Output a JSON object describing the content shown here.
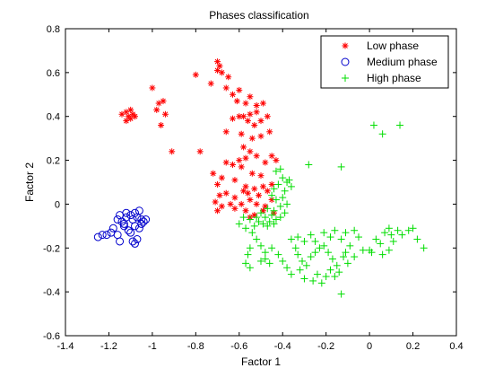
{
  "chart_data": {
    "type": "scatter",
    "title": "Phases classification",
    "xlabel": "Factor 1",
    "ylabel": "Factor 2",
    "xlim": [
      -1.4,
      0.4
    ],
    "ylim": [
      -0.6,
      0.8
    ],
    "xticks": [
      -1.4,
      -1.2,
      -1,
      -0.8,
      -0.6,
      -0.4,
      -0.2,
      0,
      0.2,
      0.4
    ],
    "xtick_labels": [
      "-1.4",
      "-1.2",
      "-1",
      "-0.8",
      "-0.6",
      "-0.4",
      "-0.2",
      "0",
      "0.2",
      "0.4"
    ],
    "yticks": [
      -0.6,
      -0.4,
      -0.2,
      0,
      0.2,
      0.4,
      0.6,
      0.8
    ],
    "ytick_labels": [
      "-0.6",
      "-0.4",
      "-0.2",
      "0",
      "0.2",
      "0.4",
      "0.6",
      "0.8"
    ],
    "grid": false,
    "legend_position": "top-right",
    "series": [
      {
        "name": "Low phase",
        "marker": "asterisk",
        "color": "#ff0000",
        "points": [
          [
            -1.12,
            0.42
          ],
          [
            -1.1,
            0.43
          ],
          [
            -1.11,
            0.4
          ],
          [
            -1.14,
            0.41
          ],
          [
            -1.09,
            0.41
          ],
          [
            -1.1,
            0.39
          ],
          [
            -1.12,
            0.38
          ],
          [
            -1.08,
            0.4
          ],
          [
            -1.0,
            0.53
          ],
          [
            -0.97,
            0.46
          ],
          [
            -0.95,
            0.47
          ],
          [
            -0.98,
            0.43
          ],
          [
            -0.94,
            0.41
          ],
          [
            -0.96,
            0.36
          ],
          [
            -0.91,
            0.24
          ],
          [
            -0.8,
            0.59
          ],
          [
            -0.73,
            0.55
          ],
          [
            -0.7,
            0.65
          ],
          [
            -0.69,
            0.63
          ],
          [
            -0.7,
            0.61
          ],
          [
            -0.68,
            0.6
          ],
          [
            -0.65,
            0.58
          ],
          [
            -0.66,
            0.53
          ],
          [
            -0.63,
            0.5
          ],
          [
            -0.6,
            0.52
          ],
          [
            -0.55,
            0.49
          ],
          [
            -0.61,
            0.47
          ],
          [
            -0.57,
            0.46
          ],
          [
            -0.52,
            0.45
          ],
          [
            -0.49,
            0.46
          ],
          [
            -0.6,
            0.4
          ],
          [
            -0.63,
            0.39
          ],
          [
            -0.58,
            0.4
          ],
          [
            -0.55,
            0.41
          ],
          [
            -0.52,
            0.42
          ],
          [
            -0.56,
            0.38
          ],
          [
            -0.53,
            0.36
          ],
          [
            -0.5,
            0.38
          ],
          [
            -0.47,
            0.4
          ],
          [
            -0.66,
            0.33
          ],
          [
            -0.59,
            0.32
          ],
          [
            -0.54,
            0.3
          ],
          [
            -0.5,
            0.31
          ],
          [
            -0.46,
            0.33
          ],
          [
            -0.78,
            0.24
          ],
          [
            -0.58,
            0.26
          ],
          [
            -0.55,
            0.24
          ],
          [
            -0.6,
            0.2
          ],
          [
            -0.57,
            0.21
          ],
          [
            -0.52,
            0.22
          ],
          [
            -0.48,
            0.19
          ],
          [
            -0.45,
            0.22
          ],
          [
            -0.43,
            0.2
          ],
          [
            -0.66,
            0.19
          ],
          [
            -0.63,
            0.18
          ],
          [
            -0.59,
            0.17
          ],
          [
            -0.54,
            0.14
          ],
          [
            -0.5,
            0.13
          ],
          [
            -0.72,
            0.14
          ],
          [
            -0.68,
            0.12
          ],
          [
            -0.7,
            0.09
          ],
          [
            -0.62,
            0.11
          ],
          [
            -0.57,
            0.08
          ],
          [
            -0.53,
            0.07
          ],
          [
            -0.49,
            0.08
          ],
          [
            -0.45,
            0.09
          ],
          [
            -0.69,
            0.04
          ],
          [
            -0.66,
            0.05
          ],
          [
            -0.62,
            0.03
          ],
          [
            -0.58,
            0.06
          ],
          [
            -0.55,
            0.02
          ],
          [
            -0.51,
            0.04
          ],
          [
            -0.47,
            0.06
          ],
          [
            -0.71,
            0.01
          ],
          [
            -0.68,
            -0.01
          ],
          [
            -0.64,
            0.0
          ],
          [
            -0.59,
            0.0
          ],
          [
            -0.56,
            0.05
          ],
          [
            -0.52,
            0.0
          ],
          [
            -0.48,
            -0.01
          ],
          [
            -0.7,
            -0.03
          ],
          [
            -0.62,
            -0.02
          ],
          [
            -0.57,
            -0.03
          ],
          [
            -0.53,
            -0.05
          ],
          [
            -0.49,
            -0.03
          ],
          [
            -0.45,
            0.02
          ],
          [
            -0.44,
            -0.04
          ],
          [
            -0.55,
            -0.06
          ]
        ]
      },
      {
        "name": "Medium phase",
        "marker": "circle",
        "color": "#0000cc",
        "points": [
          [
            -1.25,
            -0.15
          ],
          [
            -1.23,
            -0.14
          ],
          [
            -1.21,
            -0.14
          ],
          [
            -1.19,
            -0.13
          ],
          [
            -1.18,
            -0.11
          ],
          [
            -1.16,
            -0.14
          ],
          [
            -1.15,
            -0.17
          ],
          [
            -1.16,
            -0.07
          ],
          [
            -1.15,
            -0.05
          ],
          [
            -1.14,
            -0.08
          ],
          [
            -1.13,
            -0.09
          ],
          [
            -1.12,
            -0.06
          ],
          [
            -1.12,
            -0.04
          ],
          [
            -1.1,
            -0.05
          ],
          [
            -1.09,
            -0.07
          ],
          [
            -1.08,
            -0.04
          ],
          [
            -1.07,
            -0.06
          ],
          [
            -1.06,
            -0.03
          ],
          [
            -1.05,
            -0.07
          ],
          [
            -1.04,
            -0.08
          ],
          [
            -1.03,
            -0.07
          ],
          [
            -1.11,
            -0.12
          ],
          [
            -1.1,
            -0.13
          ],
          [
            -1.09,
            -0.17
          ],
          [
            -1.08,
            -0.18
          ],
          [
            -1.07,
            -0.16
          ],
          [
            -1.06,
            -0.11
          ],
          [
            -1.05,
            -0.09
          ],
          [
            -1.13,
            -0.1
          ],
          [
            -1.08,
            -0.1
          ]
        ]
      },
      {
        "name": "High phase",
        "marker": "plus",
        "color": "#00dd00",
        "points": [
          [
            0.02,
            0.36
          ],
          [
            0.06,
            0.32
          ],
          [
            0.14,
            0.36
          ],
          [
            -0.13,
            0.17
          ],
          [
            -0.28,
            0.18
          ],
          [
            -0.41,
            0.16
          ],
          [
            -0.43,
            0.15
          ],
          [
            -0.4,
            0.12
          ],
          [
            -0.38,
            0.1
          ],
          [
            -0.42,
            0.09
          ],
          [
            -0.44,
            0.07
          ],
          [
            -0.39,
            0.06
          ],
          [
            -0.36,
            0.08
          ],
          [
            -0.37,
            0.11
          ],
          [
            -0.45,
            0.04
          ],
          [
            -0.43,
            0.02
          ],
          [
            -0.4,
            0.03
          ],
          [
            -0.38,
            0.0
          ],
          [
            -0.41,
            -0.01
          ],
          [
            -0.44,
            -0.03
          ],
          [
            -0.47,
            -0.02
          ],
          [
            -0.5,
            -0.04
          ],
          [
            -0.52,
            -0.06
          ],
          [
            -0.48,
            -0.06
          ],
          [
            -0.45,
            -0.05
          ],
          [
            -0.43,
            -0.07
          ],
          [
            -0.46,
            -0.08
          ],
          [
            -0.49,
            -0.09
          ],
          [
            -0.51,
            -0.08
          ],
          [
            -0.47,
            -0.1
          ],
          [
            -0.44,
            -0.09
          ],
          [
            -0.41,
            -0.06
          ],
          [
            -0.39,
            -0.04
          ],
          [
            -0.53,
            -0.1
          ],
          [
            -0.55,
            -0.07
          ],
          [
            -0.58,
            -0.06
          ],
          [
            -0.6,
            -0.09
          ],
          [
            -0.57,
            -0.11
          ],
          [
            -0.54,
            -0.13
          ],
          [
            -0.52,
            -0.16
          ],
          [
            -0.5,
            -0.19
          ],
          [
            -0.48,
            -0.22
          ],
          [
            -0.45,
            -0.2
          ],
          [
            -0.42,
            -0.23
          ],
          [
            -0.4,
            -0.26
          ],
          [
            -0.38,
            -0.29
          ],
          [
            -0.36,
            -0.32
          ],
          [
            -0.34,
            -0.2
          ],
          [
            -0.33,
            -0.23
          ],
          [
            -0.31,
            -0.26
          ],
          [
            -0.29,
            -0.28
          ],
          [
            -0.27,
            -0.24
          ],
          [
            -0.25,
            -0.22
          ],
          [
            -0.23,
            -0.2
          ],
          [
            -0.21,
            -0.19
          ],
          [
            -0.19,
            -0.22
          ],
          [
            -0.17,
            -0.25
          ],
          [
            -0.15,
            -0.28
          ],
          [
            -0.14,
            -0.31
          ],
          [
            -0.12,
            -0.24
          ],
          [
            -0.1,
            -0.27
          ],
          [
            -0.18,
            -0.3
          ],
          [
            -0.2,
            -0.33
          ],
          [
            -0.22,
            -0.36
          ],
          [
            -0.24,
            -0.32
          ],
          [
            -0.26,
            -0.35
          ],
          [
            -0.16,
            -0.33
          ],
          [
            -0.13,
            -0.41
          ],
          [
            -0.3,
            -0.34
          ],
          [
            -0.32,
            -0.3
          ],
          [
            -0.46,
            -0.27
          ],
          [
            -0.48,
            -0.25
          ],
          [
            -0.5,
            -0.26
          ],
          [
            -0.55,
            -0.29
          ],
          [
            -0.57,
            -0.27
          ],
          [
            -0.55,
            -0.2
          ],
          [
            -0.56,
            -0.23
          ],
          [
            -0.36,
            -0.16
          ],
          [
            -0.33,
            -0.15
          ],
          [
            -0.3,
            -0.17
          ],
          [
            -0.27,
            -0.14
          ],
          [
            -0.25,
            -0.17
          ],
          [
            -0.21,
            -0.13
          ],
          [
            -0.18,
            -0.15
          ],
          [
            -0.16,
            -0.12
          ],
          [
            -0.13,
            -0.16
          ],
          [
            -0.11,
            -0.13
          ],
          [
            -0.07,
            -0.12
          ],
          [
            -0.05,
            -0.15
          ],
          [
            -0.03,
            -0.21
          ],
          [
            0.0,
            -0.21
          ],
          [
            0.01,
            -0.22
          ],
          [
            -0.07,
            -0.24
          ],
          [
            0.03,
            -0.16
          ],
          [
            0.05,
            -0.18
          ],
          [
            0.07,
            -0.13
          ],
          [
            0.09,
            -0.11
          ],
          [
            0.1,
            -0.14
          ],
          [
            0.11,
            -0.17
          ],
          [
            0.13,
            -0.12
          ],
          [
            0.15,
            -0.14
          ],
          [
            0.18,
            -0.12
          ],
          [
            0.2,
            -0.11
          ],
          [
            0.22,
            -0.16
          ],
          [
            0.25,
            -0.2
          ],
          [
            0.09,
            -0.21
          ],
          [
            0.06,
            -0.23
          ],
          [
            -0.09,
            -0.19
          ],
          [
            -0.11,
            -0.22
          ]
        ]
      }
    ]
  }
}
